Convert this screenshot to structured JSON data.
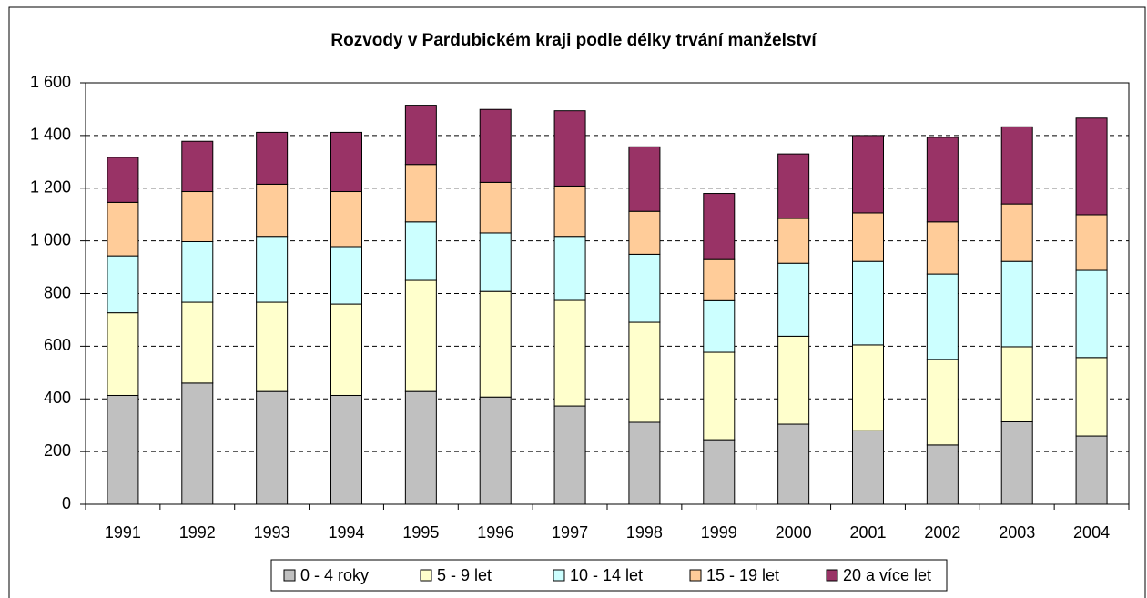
{
  "chart_data": {
    "type": "stacked_bar",
    "title": "Rozvody v Pardubickém kraji podle délky trvání manželství",
    "categories": [
      "1991",
      "1992",
      "1993",
      "1994",
      "1995",
      "1996",
      "1997",
      "1998",
      "1999",
      "2000",
      "2001",
      "2002",
      "2003",
      "2004"
    ],
    "series": [
      {
        "name": "0 - 4 roky",
        "color": "#c0c0c0",
        "values": [
          413,
          460,
          428,
          413,
          428,
          407,
          373,
          311,
          245,
          304,
          279,
          225,
          313,
          259
        ]
      },
      {
        "name": "5 - 9 let",
        "color": "#ffffcc",
        "values": [
          314,
          307,
          339,
          347,
          422,
          401,
          401,
          380,
          332,
          334,
          326,
          325,
          285,
          298
        ]
      },
      {
        "name": "10 - 14 let",
        "color": "#ccffff",
        "values": [
          216,
          230,
          250,
          218,
          222,
          222,
          243,
          258,
          196,
          277,
          317,
          324,
          324,
          331
        ]
      },
      {
        "name": "15 - 19 let",
        "color": "#ffcc99",
        "values": [
          203,
          190,
          198,
          209,
          218,
          192,
          191,
          163,
          156,
          170,
          184,
          198,
          218,
          211
        ]
      },
      {
        "name": "20 a více let",
        "color": "#993366",
        "values": [
          171,
          191,
          197,
          225,
          225,
          277,
          286,
          245,
          251,
          245,
          294,
          321,
          293,
          367
        ]
      }
    ],
    "ylim": [
      0,
      1600
    ],
    "yticks": [
      0,
      200,
      400,
      600,
      800,
      {
        "value": 1000,
        "label": "1 000"
      },
      {
        "value": 1200,
        "label": "1 200"
      },
      {
        "value": 1400,
        "label": "1 400"
      },
      {
        "value": 1600,
        "label": "1 600"
      }
    ],
    "grid": true,
    "legend": "bottom"
  }
}
